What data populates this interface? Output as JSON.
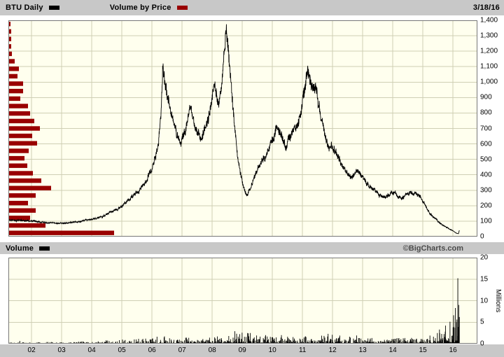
{
  "header": {
    "symbol": "BTU Daily",
    "overlay": "Volume by Price",
    "date": "3/18/16"
  },
  "volume_header": {
    "label": "Volume",
    "copyright": "©BigCharts.com"
  },
  "colors": {
    "price_line": "#000000",
    "vbp_bar": "#990000",
    "plot_bg": "#ffffee",
    "grid": "#cfcfb4",
    "frame": "#777777",
    "strip_bg": "#c8c8c8",
    "volume_bar": "#000000"
  },
  "chart_data": [
    {
      "id": "price",
      "type": "line",
      "series_name": "BTU daily price",
      "x_domain": [
        2001.23,
        2016.81
      ],
      "end_year": 2016.21,
      "x_tick_years": [
        2002,
        2003,
        2004,
        2005,
        2006,
        2007,
        2008,
        2009,
        2010,
        2011,
        2012,
        2013,
        2014,
        2015,
        2016
      ],
      "x_ticks": [
        "02",
        "03",
        "04",
        "05",
        "06",
        "07",
        "08",
        "09",
        "10",
        "11",
        "12",
        "13",
        "14",
        "15",
        "16"
      ],
      "ylim": [
        0,
        1400
      ],
      "y_ticks": [
        "1,400",
        "1,300",
        "1,200",
        "1,100",
        "1,000",
        "900",
        "800",
        "700",
        "600",
        "500",
        "400",
        "300",
        "200",
        "100",
        "0"
      ],
      "grid": true,
      "legend_position": "top",
      "seed": 11,
      "keypoints": [
        [
          2001.23,
          107
        ],
        [
          2002.0,
          103
        ],
        [
          2002.4,
          96
        ],
        [
          2002.8,
          90
        ],
        [
          2003.2,
          88
        ],
        [
          2003.6,
          97
        ],
        [
          2004.0,
          110
        ],
        [
          2004.4,
          135
        ],
        [
          2004.8,
          170
        ],
        [
          2005.0,
          195
        ],
        [
          2005.25,
          240
        ],
        [
          2005.5,
          285
        ],
        [
          2005.75,
          345
        ],
        [
          2006.0,
          440
        ],
        [
          2006.12,
          520
        ],
        [
          2006.22,
          600
        ],
        [
          2006.3,
          800
        ],
        [
          2006.36,
          1120
        ],
        [
          2006.44,
          980
        ],
        [
          2006.55,
          860
        ],
        [
          2006.68,
          750
        ],
        [
          2006.8,
          680
        ],
        [
          2006.95,
          615
        ],
        [
          2007.1,
          690
        ],
        [
          2007.25,
          805
        ],
        [
          2007.35,
          760
        ],
        [
          2007.5,
          680
        ],
        [
          2007.62,
          635
        ],
        [
          2007.75,
          705
        ],
        [
          2007.9,
          790
        ],
        [
          2008.0,
          880
        ],
        [
          2008.12,
          950
        ],
        [
          2008.22,
          850
        ],
        [
          2008.32,
          1000
        ],
        [
          2008.42,
          1250
        ],
        [
          2008.47,
          1330
        ],
        [
          2008.55,
          1150
        ],
        [
          2008.65,
          930
        ],
        [
          2008.75,
          700
        ],
        [
          2008.85,
          500
        ],
        [
          2008.95,
          390
        ],
        [
          2009.05,
          320
        ],
        [
          2009.15,
          265
        ],
        [
          2009.25,
          310
        ],
        [
          2009.4,
          390
        ],
        [
          2009.55,
          455
        ],
        [
          2009.7,
          505
        ],
        [
          2009.85,
          555
        ],
        [
          2010.0,
          620
        ],
        [
          2010.15,
          675
        ],
        [
          2010.3,
          645
        ],
        [
          2010.45,
          585
        ],
        [
          2010.6,
          645
        ],
        [
          2010.75,
          705
        ],
        [
          2010.9,
          785
        ],
        [
          2011.0,
          880
        ],
        [
          2011.1,
          1000
        ],
        [
          2011.18,
          1070
        ],
        [
          2011.3,
          990
        ],
        [
          2011.45,
          930
        ],
        [
          2011.6,
          800
        ],
        [
          2011.75,
          650
        ],
        [
          2011.9,
          580
        ],
        [
          2012.05,
          545
        ],
        [
          2012.2,
          500
        ],
        [
          2012.35,
          440
        ],
        [
          2012.5,
          400
        ],
        [
          2012.65,
          380
        ],
        [
          2012.8,
          410
        ],
        [
          2012.95,
          420
        ],
        [
          2013.1,
          370
        ],
        [
          2013.25,
          320
        ],
        [
          2013.4,
          290
        ],
        [
          2013.55,
          265
        ],
        [
          2013.7,
          255
        ],
        [
          2013.85,
          275
        ],
        [
          2014.0,
          285
        ],
        [
          2014.15,
          260
        ],
        [
          2014.3,
          245
        ],
        [
          2014.45,
          265
        ],
        [
          2014.6,
          290
        ],
        [
          2014.75,
          295
        ],
        [
          2014.9,
          255
        ],
        [
          2015.05,
          205
        ],
        [
          2015.2,
          160
        ],
        [
          2015.35,
          125
        ],
        [
          2015.5,
          98
        ],
        [
          2015.65,
          75
        ],
        [
          2015.8,
          58
        ],
        [
          2015.95,
          42
        ],
        [
          2016.05,
          30
        ],
        [
          2016.12,
          22
        ],
        [
          2016.18,
          18
        ],
        [
          2016.21,
          40
        ]
      ]
    },
    {
      "id": "volume_by_price",
      "type": "hbar",
      "series_name": "Volume by Price",
      "levels": [
        {
          "p": 24,
          "v": 150
        },
        {
          "p": 72,
          "v": 52
        },
        {
          "p": 121,
          "v": 30
        },
        {
          "p": 169,
          "v": 38
        },
        {
          "p": 217,
          "v": 27
        },
        {
          "p": 266,
          "v": 38
        },
        {
          "p": 314,
          "v": 60
        },
        {
          "p": 362,
          "v": 46
        },
        {
          "p": 410,
          "v": 34
        },
        {
          "p": 459,
          "v": 26
        },
        {
          "p": 507,
          "v": 22
        },
        {
          "p": 555,
          "v": 28
        },
        {
          "p": 604,
          "v": 40
        },
        {
          "p": 652,
          "v": 33
        },
        {
          "p": 700,
          "v": 44
        },
        {
          "p": 748,
          "v": 36
        },
        {
          "p": 797,
          "v": 30
        },
        {
          "p": 845,
          "v": 27
        },
        {
          "p": 893,
          "v": 16
        },
        {
          "p": 942,
          "v": 20
        },
        {
          "p": 990,
          "v": 20
        },
        {
          "p": 1038,
          "v": 12
        },
        {
          "p": 1086,
          "v": 14
        },
        {
          "p": 1135,
          "v": 8
        },
        {
          "p": 1183,
          "v": 4
        },
        {
          "p": 1231,
          "v": 3
        },
        {
          "p": 1279,
          "v": 3
        },
        {
          "p": 1328,
          "v": 3
        },
        {
          "p": 1376,
          "v": 2
        }
      ]
    },
    {
      "id": "volume",
      "type": "bar",
      "series_name": "Daily volume (millions of shares)",
      "ylim": [
        0,
        20
      ],
      "y_ticks": [
        "20",
        "15",
        "10",
        "5",
        "0"
      ],
      "ylabel": "Millions",
      "seed": 5,
      "envelope": [
        [
          2001.23,
          0.25
        ],
        [
          2003,
          0.3
        ],
        [
          2004,
          0.45
        ],
        [
          2005,
          0.7
        ],
        [
          2006,
          0.95
        ],
        [
          2006.5,
          1.3
        ],
        [
          2007,
          1.0
        ],
        [
          2008,
          1.2
        ],
        [
          2008.8,
          2.1
        ],
        [
          2009.3,
          1.8
        ],
        [
          2010,
          1.3
        ],
        [
          2011,
          1.3
        ],
        [
          2011.8,
          1.7
        ],
        [
          2012.3,
          1.4
        ],
        [
          2013,
          1.1
        ],
        [
          2014,
          0.9
        ],
        [
          2015,
          1.2
        ],
        [
          2015.6,
          2.0
        ],
        [
          2016.0,
          3.5
        ],
        [
          2016.21,
          6.0
        ]
      ],
      "spikes": [
        [
          2008.75,
          2.9
        ],
        [
          2009.2,
          2.4
        ],
        [
          2010.3,
          2.0
        ],
        [
          2011.85,
          2.3
        ],
        [
          2012.8,
          1.9
        ],
        [
          2015.55,
          3.3
        ],
        [
          2015.75,
          4.2
        ],
        [
          2015.9,
          5.1
        ],
        [
          2016.02,
          6.6
        ],
        [
          2016.08,
          8.3
        ],
        [
          2016.13,
          5.6
        ],
        [
          2016.16,
          15.2
        ],
        [
          2016.19,
          9.0
        ],
        [
          2016.21,
          6.2
        ]
      ]
    }
  ]
}
